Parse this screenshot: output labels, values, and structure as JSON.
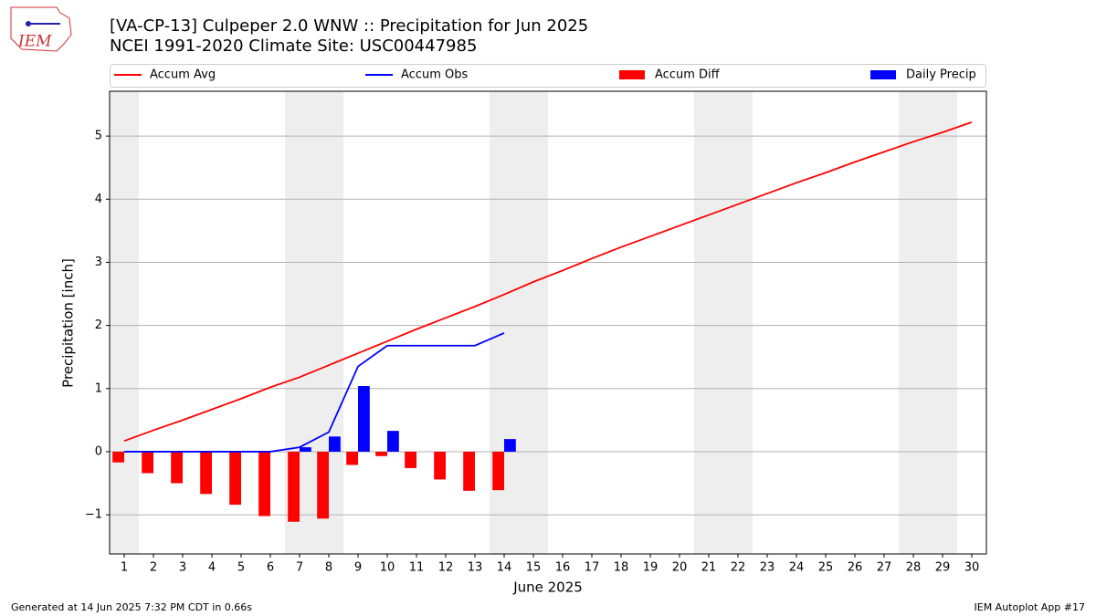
{
  "chart_data": {
    "type": "combo",
    "title": "[VA-CP-13] Culpeper 2.0 WNW :: Precipitation for Jun 2025",
    "subtitle": "NCEI 1991-2020 Climate Site: USC00447985",
    "logo_text": "IEM",
    "y_label": "Precipitation [inch]",
    "x_label": "June 2025",
    "footer_left": "Generated at 14 Jun 2025 7:32 PM CDT in 0.66s",
    "footer_right": "IEM Autoplot App #17",
    "x": [
      1,
      2,
      3,
      4,
      5,
      6,
      7,
      8,
      9,
      10,
      11,
      12,
      13,
      14,
      15,
      16,
      17,
      18,
      19,
      20,
      21,
      22,
      23,
      24,
      25,
      26,
      27,
      28,
      29,
      30
    ],
    "xlim": [
      0.5,
      30.5
    ],
    "xticks": [
      1,
      2,
      3,
      4,
      5,
      6,
      7,
      8,
      9,
      10,
      11,
      12,
      13,
      14,
      15,
      16,
      17,
      18,
      19,
      20,
      21,
      22,
      23,
      24,
      25,
      26,
      27,
      28,
      29,
      30
    ],
    "ylim": [
      -1.62,
      5.71
    ],
    "yticks": [
      {
        "value": -1,
        "label": "−1"
      },
      0,
      1,
      2,
      3,
      4,
      5
    ],
    "grid": true,
    "shaded_ranges": [
      [
        0.5,
        1.5
      ],
      [
        6.5,
        8.5
      ],
      [
        13.5,
        15.5
      ],
      [
        20.5,
        22.5
      ],
      [
        27.5,
        29.5
      ]
    ],
    "shade_color": "#eeeeee",
    "series": [
      {
        "name": "Accum Avg",
        "type": "line",
        "color": "#ff0000",
        "values": [
          0.17,
          0.34,
          0.5,
          0.67,
          0.84,
          1.02,
          1.18,
          1.37,
          1.56,
          1.75,
          1.94,
          2.12,
          2.3,
          2.49,
          2.69,
          2.87,
          3.06,
          3.24,
          3.41,
          3.58,
          3.75,
          3.92,
          4.09,
          4.26,
          4.42,
          4.59,
          4.75,
          4.91,
          5.06,
          5.22
        ]
      },
      {
        "name": "Accum Obs",
        "type": "line",
        "color": "#0000ff",
        "values": [
          0,
          0,
          0,
          0,
          0,
          0,
          0.07,
          0.31,
          1.35,
          1.68,
          1.68,
          1.68,
          1.68,
          1.88,
          null,
          null,
          null,
          null,
          null,
          null,
          null,
          null,
          null,
          null,
          null,
          null,
          null,
          null,
          null,
          null
        ]
      },
      {
        "name": "Accum Diff",
        "type": "bar",
        "side": "left",
        "color": "#ff0000",
        "values": [
          -0.17,
          -0.34,
          -0.5,
          -0.67,
          -0.84,
          -1.02,
          -1.11,
          -1.06,
          -0.21,
          -0.07,
          -0.26,
          -0.44,
          -0.62,
          -0.61,
          null,
          null,
          null,
          null,
          null,
          null,
          null,
          null,
          null,
          null,
          null,
          null,
          null,
          null,
          null,
          null
        ]
      },
      {
        "name": "Daily Precip",
        "type": "bar",
        "side": "right",
        "color": "#0000ff",
        "values": [
          0,
          0,
          0,
          0,
          0,
          0,
          0.07,
          0.24,
          1.04,
          0.33,
          0,
          0,
          0,
          0.2,
          null,
          null,
          null,
          null,
          null,
          null,
          null,
          null,
          null,
          null,
          null,
          null,
          null,
          null,
          null,
          null
        ]
      }
    ]
  }
}
